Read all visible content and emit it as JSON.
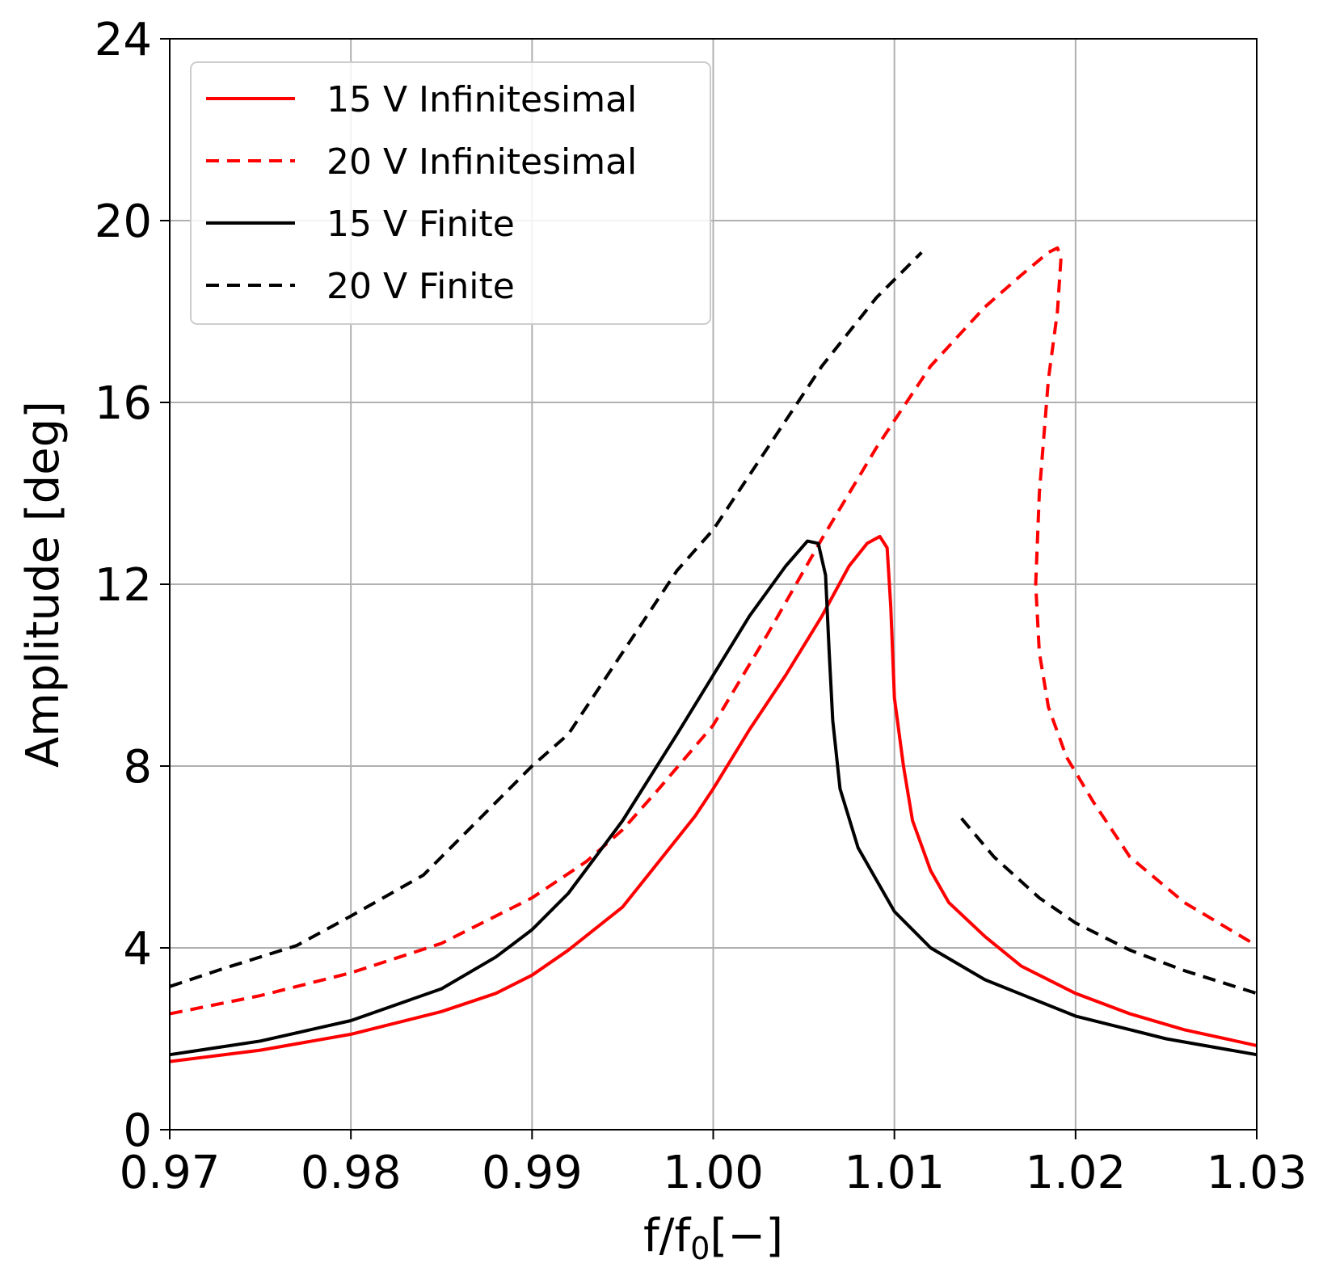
{
  "chart_data": {
    "type": "line",
    "xlabel": "f/f",
    "xlabel_sub": "0",
    "xlabel_tail": "[−]",
    "ylabel": "Amplitude [deg]",
    "xlim": [
      0.97,
      1.03
    ],
    "ylim": [
      0,
      24
    ],
    "grid": true,
    "legend_position": "top-left",
    "x_ticks": [
      0.97,
      0.98,
      0.99,
      1.0,
      1.01,
      1.02,
      1.03
    ],
    "x_tick_labels": [
      "0.97",
      "0.98",
      "0.99",
      "1.00",
      "1.01",
      "1.02",
      "1.03"
    ],
    "y_ticks": [
      0,
      4,
      8,
      12,
      16,
      20,
      24
    ],
    "y_tick_labels": [
      "0",
      "4",
      "8",
      "12",
      "16",
      "20",
      "24"
    ],
    "series": [
      {
        "name": "15 V Infinitesimal",
        "color": "#ff0000",
        "dashed": false,
        "segments": [
          [
            [
              0.97,
              1.5
            ],
            [
              0.975,
              1.75
            ],
            [
              0.98,
              2.1
            ],
            [
              0.985,
              2.6
            ],
            [
              0.988,
              3.0
            ],
            [
              0.99,
              3.4
            ],
            [
              0.992,
              3.95
            ],
            [
              0.995,
              4.9
            ],
            [
              0.997,
              5.9
            ],
            [
              0.999,
              6.9
            ],
            [
              1.0,
              7.5
            ],
            [
              1.002,
              8.8
            ],
            [
              1.004,
              10.0
            ],
            [
              1.006,
              11.3
            ],
            [
              1.0075,
              12.4
            ],
            [
              1.0085,
              12.9
            ],
            [
              1.0092,
              13.05
            ],
            [
              1.0096,
              12.8
            ],
            [
              1.0098,
              11.5
            ],
            [
              1.01,
              9.5
            ],
            [
              1.0105,
              8.0
            ],
            [
              1.011,
              6.8
            ],
            [
              1.012,
              5.7
            ],
            [
              1.013,
              5.0
            ],
            [
              1.015,
              4.25
            ],
            [
              1.017,
              3.6
            ],
            [
              1.02,
              3.0
            ],
            [
              1.023,
              2.55
            ],
            [
              1.026,
              2.2
            ],
            [
              1.03,
              1.85
            ]
          ]
        ]
      },
      {
        "name": "20 V Infinitesimal",
        "color": "#ff0000",
        "dashed": true,
        "segments": [
          [
            [
              0.97,
              2.55
            ],
            [
              0.975,
              2.95
            ],
            [
              0.98,
              3.45
            ],
            [
              0.985,
              4.1
            ],
            [
              0.99,
              5.1
            ],
            [
              0.993,
              5.9
            ],
            [
              0.995,
              6.6
            ],
            [
              0.997,
              7.5
            ],
            [
              1.0,
              8.9
            ],
            [
              1.003,
              10.9
            ],
            [
              1.006,
              13.0
            ],
            [
              1.009,
              15.0
            ],
            [
              1.012,
              16.8
            ],
            [
              1.015,
              18.1
            ],
            [
              1.017,
              18.8
            ],
            [
              1.0185,
              19.3
            ],
            [
              1.019,
              19.4
            ],
            [
              1.0192,
              19.2
            ],
            [
              1.019,
              18.0
            ],
            [
              1.0185,
              16.5
            ],
            [
              1.018,
              14.0
            ],
            [
              1.0178,
              12.0
            ],
            [
              1.018,
              10.5
            ],
            [
              1.0185,
              9.3
            ],
            [
              1.0195,
              8.2
            ],
            [
              1.021,
              7.2
            ],
            [
              1.023,
              6.0
            ],
            [
              1.026,
              5.0
            ],
            [
              1.03,
              4.05
            ]
          ]
        ]
      },
      {
        "name": "15 V Finite",
        "color": "#000000",
        "dashed": false,
        "segments": [
          [
            [
              0.97,
              1.65
            ],
            [
              0.975,
              1.95
            ],
            [
              0.98,
              2.4
            ],
            [
              0.985,
              3.1
            ],
            [
              0.988,
              3.8
            ],
            [
              0.99,
              4.4
            ],
            [
              0.992,
              5.2
            ],
            [
              0.995,
              6.8
            ],
            [
              0.998,
              8.7
            ],
            [
              1.0,
              10.0
            ],
            [
              1.002,
              11.3
            ],
            [
              1.004,
              12.4
            ],
            [
              1.0052,
              12.95
            ],
            [
              1.0058,
              12.9
            ],
            [
              1.0062,
              12.2
            ],
            [
              1.0064,
              10.5
            ],
            [
              1.0066,
              9.0
            ],
            [
              1.007,
              7.5
            ],
            [
              1.008,
              6.2
            ],
            [
              1.01,
              4.8
            ],
            [
              1.012,
              4.0
            ],
            [
              1.015,
              3.3
            ],
            [
              1.02,
              2.5
            ],
            [
              1.025,
              2.0
            ],
            [
              1.03,
              1.65
            ]
          ]
        ]
      },
      {
        "name": "20 V Finite",
        "color": "#000000",
        "dashed": true,
        "segments": [
          [
            [
              0.97,
              3.15
            ],
            [
              0.973,
              3.55
            ],
            [
              0.977,
              4.05
            ],
            [
              0.98,
              4.7
            ],
            [
              0.984,
              5.6
            ],
            [
              0.987,
              6.8
            ],
            [
              0.99,
              8.0
            ],
            [
              0.992,
              8.7
            ],
            [
              0.995,
              10.5
            ],
            [
              0.998,
              12.3
            ],
            [
              1.0,
              13.2
            ],
            [
              1.003,
              15.0
            ],
            [
              1.006,
              16.8
            ],
            [
              1.009,
              18.3
            ],
            [
              1.0115,
              19.3
            ]
          ],
          [
            [
              1.0137,
              6.85
            ],
            [
              1.0155,
              6.0
            ],
            [
              1.018,
              5.1
            ],
            [
              1.02,
              4.55
            ],
            [
              1.023,
              3.95
            ],
            [
              1.026,
              3.5
            ],
            [
              1.03,
              3.0
            ]
          ]
        ]
      }
    ]
  }
}
